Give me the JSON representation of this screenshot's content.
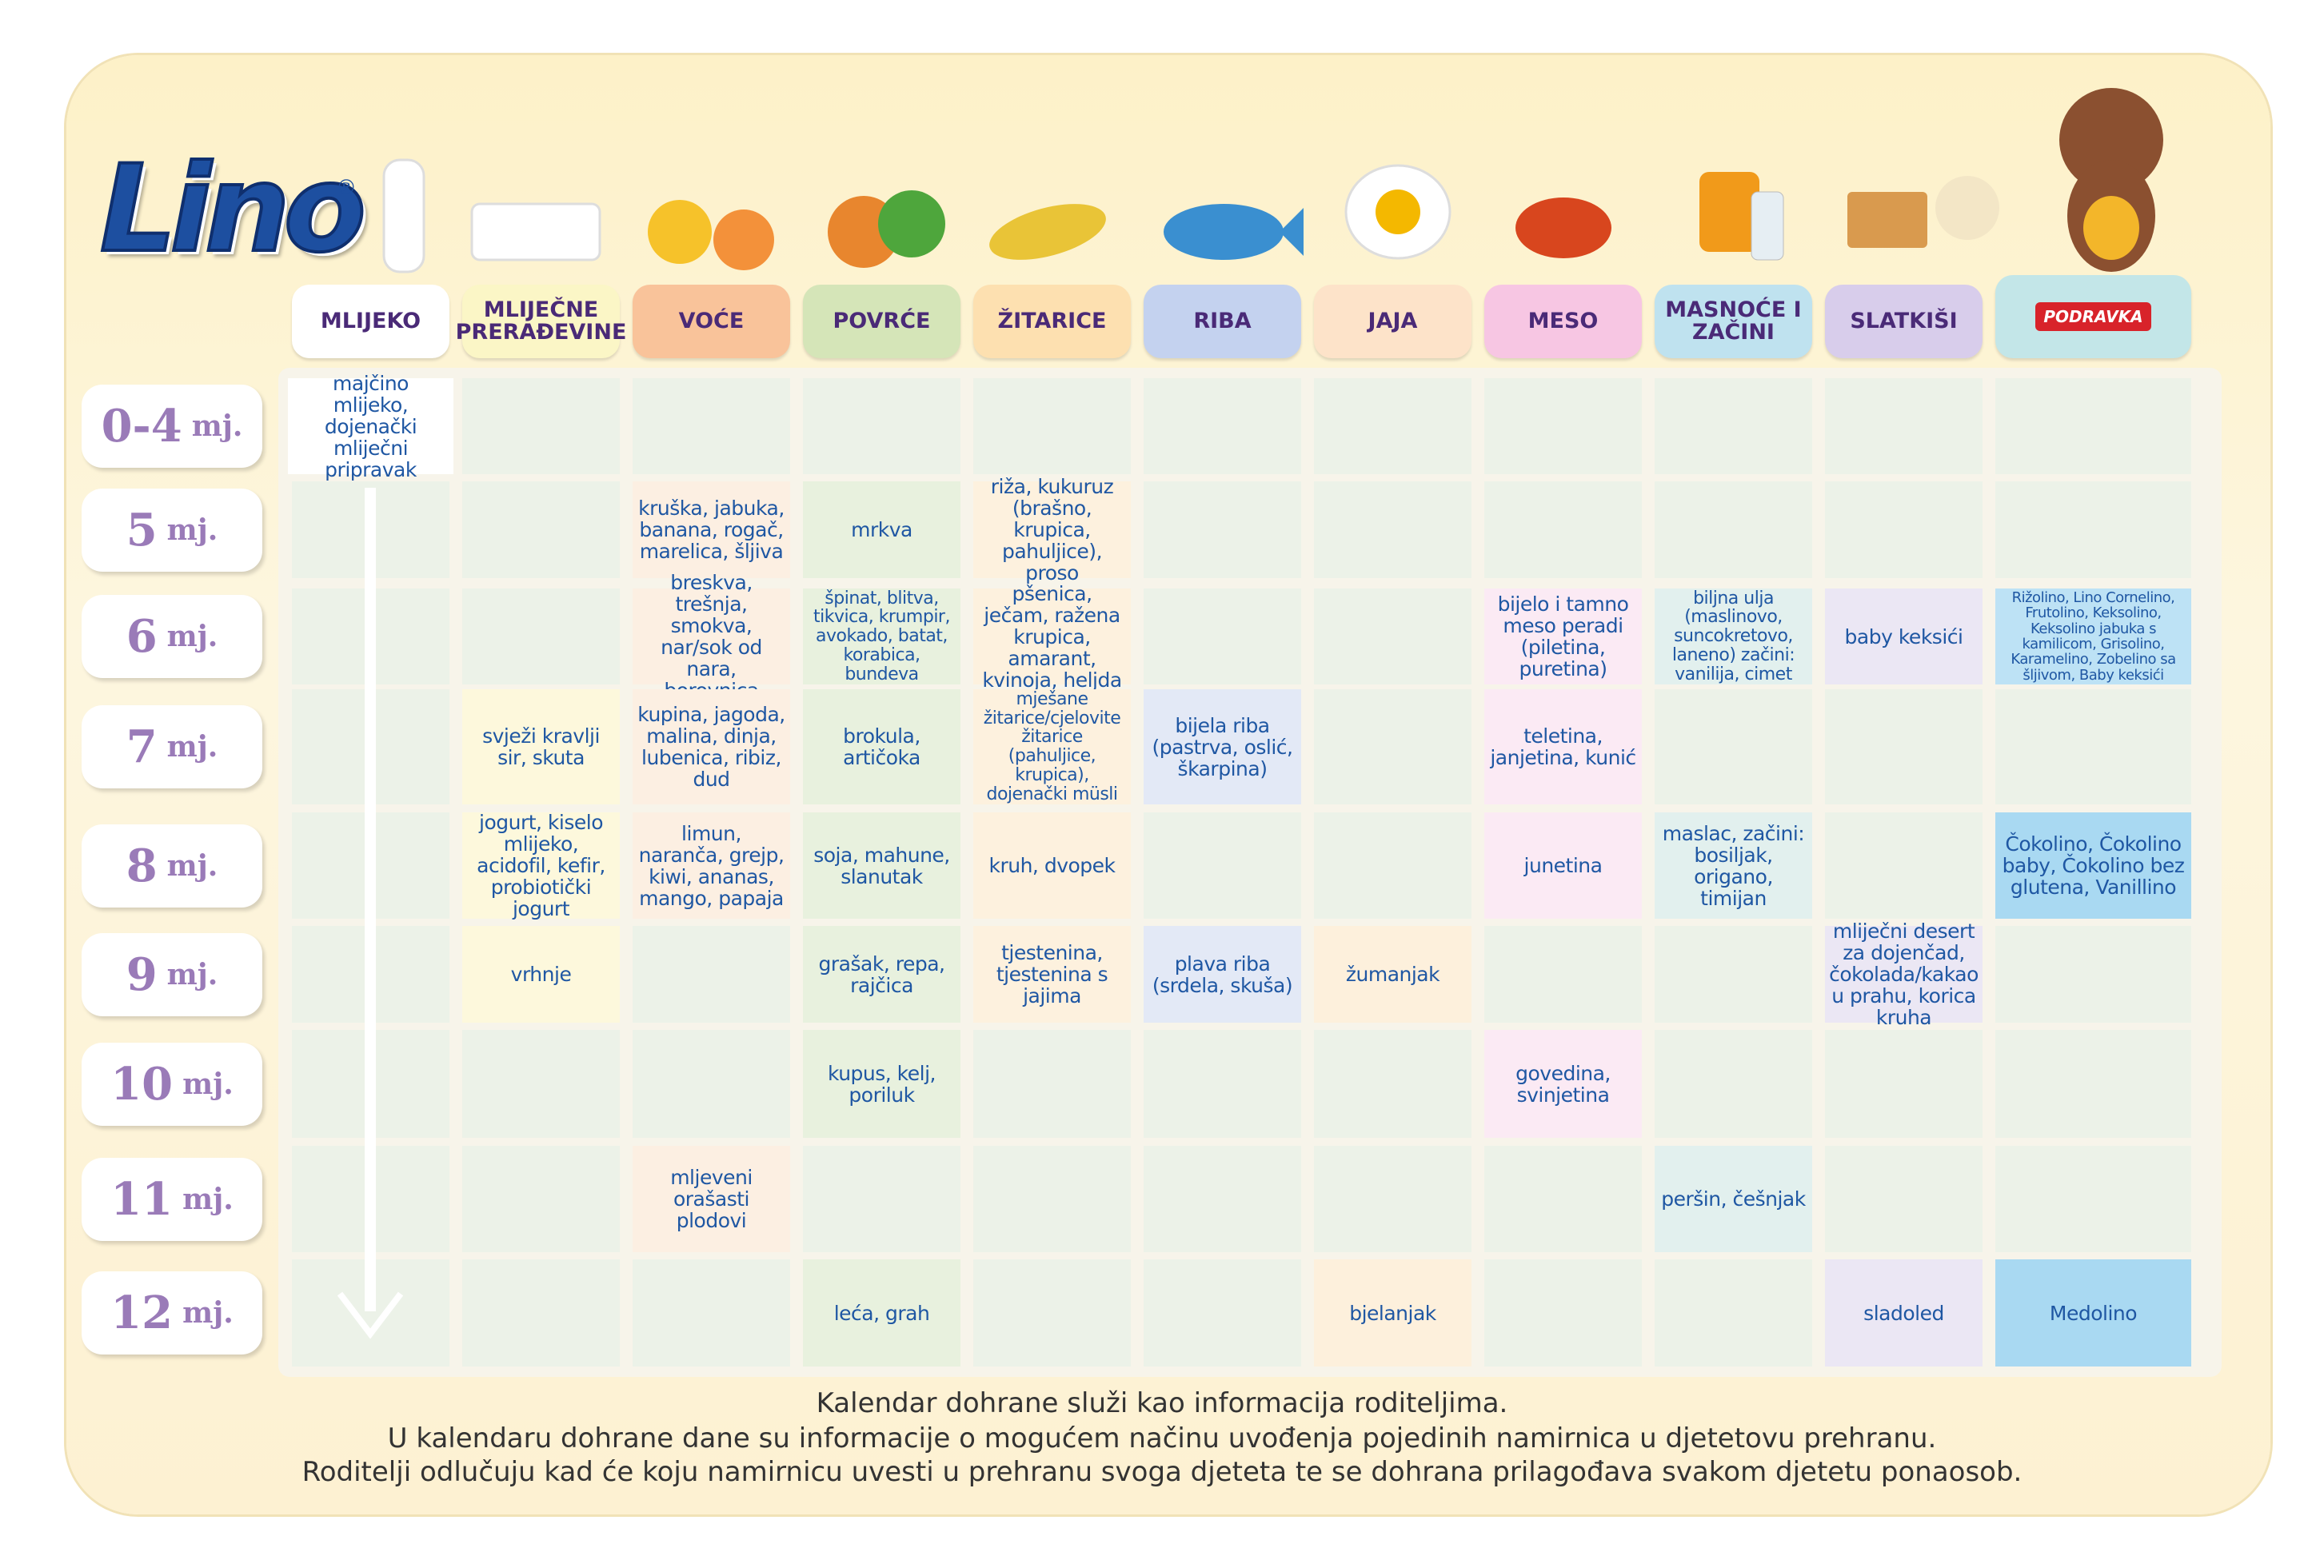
{
  "logo": {
    "name": "Lino",
    "mark": "®"
  },
  "brand": "PODRAVKA",
  "columns": [
    "MLIJEKO",
    "MLIJEČNE PRERAĐEVINE",
    "VOĆE",
    "POVRĆE",
    "ŽITARICE",
    "RIBA",
    "JAJA",
    "MESO",
    "MASNOĆE I ZAČINI",
    "SLATKIŠI"
  ],
  "rows": [
    {
      "age": "0-4",
      "unit": "mj.",
      "cells": [
        "majčino mlijeko, dojenački mliječni pripravak",
        null,
        null,
        null,
        null,
        null,
        null,
        null,
        null,
        null,
        null
      ]
    },
    {
      "age": "5",
      "unit": "mj.",
      "cells": [
        null,
        null,
        "kruška, jabuka, banana, rogač, marelica, šljiva",
        "mrkva",
        "riža, kukuruz (brašno, krupica, pahuljice), proso",
        null,
        null,
        null,
        null,
        null,
        null
      ]
    },
    {
      "age": "6",
      "unit": "mj.",
      "cells": [
        null,
        null,
        "breskva, trešnja, smokva, nar/sok od nara, borovnica",
        "špinat, blitva, tikvica, krumpir, avokado, batat, korabica, bundeva",
        "pšenica, ječam, ražena krupica, amarant, kvinoja, heljda",
        null,
        null,
        "bijelo i tamno meso peradi (piletina, puretina)",
        "biljna ulja (maslinovo, suncokretovo, laneno) začini: vanilija, cimet",
        "baby keksići",
        "Rižolino, Lino Cornelino, Frutolino, Keksolino, Keksolino jabuka s kamilicom, Grisolino, Karamelino, Zobelino sa šljivom, Baby keksići"
      ]
    },
    {
      "age": "7",
      "unit": "mj.",
      "cells": [
        null,
        "svježi kravlji sir, skuta",
        "kupina, jagoda, malina, dinja, lubenica, ribiz, dud",
        "brokula, artičoka",
        "mješane žitarice/cjelovite žitarice (pahuljice, krupica), dojenački müsli",
        "bijela riba (pastrva, oslić, škarpina)",
        null,
        "teletina, janjetina, kunić",
        null,
        null,
        null
      ]
    },
    {
      "age": "8",
      "unit": "mj.",
      "cells": [
        null,
        "jogurt, kiselo mlijeko, acidofil, kefir, probiotički jogurt",
        "limun, naranča, grejp, kiwi, ananas, mango, papaja",
        "soja, mahune, slanutak",
        "kruh, dvopek",
        null,
        null,
        "junetina",
        "maslac, začini: bosiljak, origano, timijan",
        null,
        "Čokolino, Čokolino baby, Čokolino bez glutena, Vanillino"
      ]
    },
    {
      "age": "9",
      "unit": "mj.",
      "cells": [
        null,
        "vrhnje",
        null,
        "grašak, repa, rajčica",
        "tjestenina, tjestenina s jajima",
        "plava riba (srdela, skuša)",
        "žumanjak",
        null,
        null,
        "mliječni desert za dojenčad, čokolada/kakao u prahu, korica kruha",
        null
      ]
    },
    {
      "age": "10",
      "unit": "mj.",
      "cells": [
        null,
        null,
        null,
        "kupus, kelj, poriluk",
        null,
        null,
        null,
        "govedina, svinjetina",
        null,
        null,
        null
      ]
    },
    {
      "age": "11",
      "unit": "mj.",
      "cells": [
        null,
        null,
        "mljeveni orašasti plodovi",
        null,
        null,
        null,
        null,
        null,
        "peršin, češnjak",
        null,
        null
      ]
    },
    {
      "age": "12",
      "unit": "mj.",
      "cells": [
        null,
        null,
        null,
        "leća, grah",
        null,
        null,
        "bjelanjak",
        null,
        null,
        "sladoled",
        "Medolino"
      ]
    }
  ],
  "footer": [
    "Kalendar dohrane služi kao informacija roditeljima.",
    "U kalendaru dohrane dane su informacije o mogućem načinu uvođenja pojedinih namirnica u djetetovu prehranu.",
    "Roditelji odlučuju kad će koju namirnicu uvesti u prehranu svoga djeteta te se dohrana prilagođava svakom djetetu ponaosob."
  ]
}
